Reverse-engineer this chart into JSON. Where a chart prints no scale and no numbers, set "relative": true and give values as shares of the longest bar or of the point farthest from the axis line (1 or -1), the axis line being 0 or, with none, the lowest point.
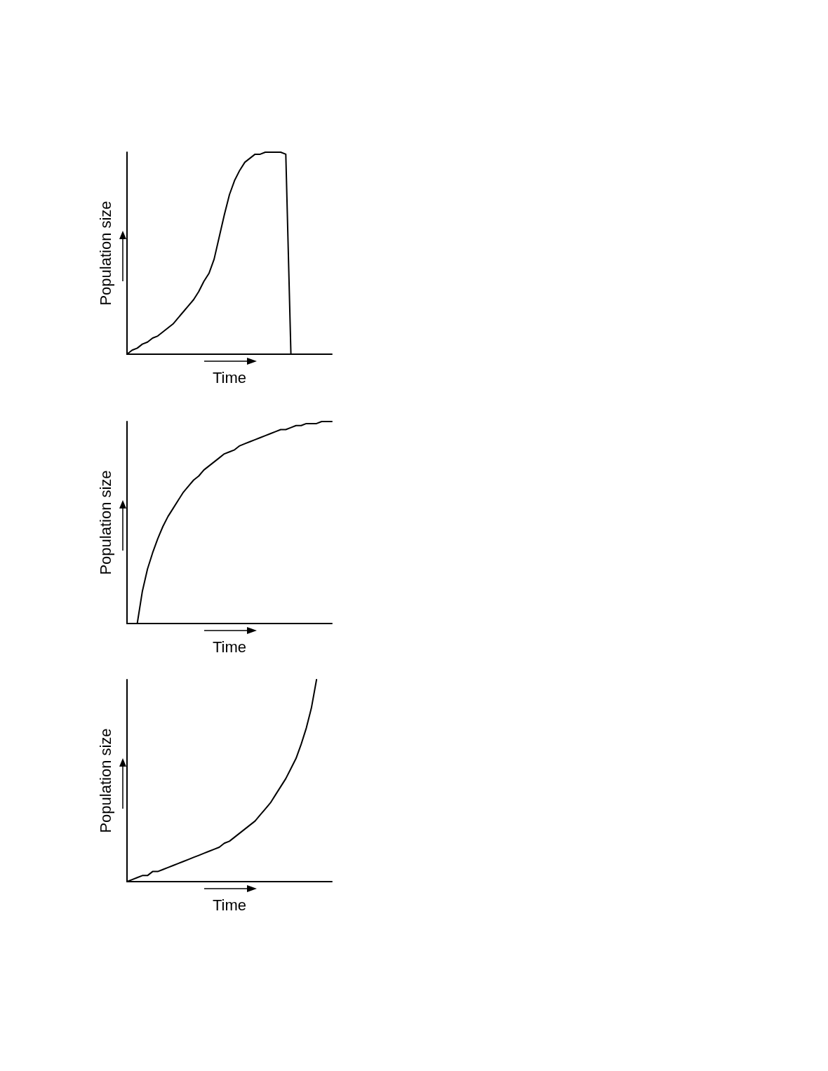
{
  "chart_data": [
    {
      "type": "line",
      "relative": true,
      "xlabel": "Time",
      "ylabel": "Population size",
      "color": "#000000",
      "line_style": "solid",
      "categories": [
        null,
        null,
        null,
        null,
        null,
        null,
        null,
        null,
        null,
        null,
        null,
        null,
        null,
        null,
        null,
        null,
        null,
        null,
        null,
        null,
        null,
        null,
        null,
        null,
        null,
        null,
        null,
        null,
        null,
        null,
        null,
        null,
        null,
        null,
        null,
        null,
        null,
        null,
        null,
        null,
        null
      ],
      "values": [
        0,
        0.02,
        0.03,
        0.05,
        0.06,
        0.08,
        0.09,
        0.11,
        0.13,
        0.15,
        0.18,
        0.21,
        0.24,
        0.27,
        0.31,
        0.36,
        0.4,
        0.47,
        0.58,
        0.69,
        0.79,
        0.86,
        0.91,
        0.95,
        0.97,
        0.99,
        0.99,
        1,
        1,
        1,
        1,
        0.99,
        0,
        null,
        null,
        null,
        null,
        null,
        null,
        null,
        null
      ]
    },
    {
      "type": "line",
      "relative": true,
      "xlabel": "Time",
      "ylabel": "Population size",
      "color": "#000000",
      "line_style": "solid",
      "categories": [
        null,
        null,
        null,
        null,
        null,
        null,
        null,
        null,
        null,
        null,
        null,
        null,
        null,
        null,
        null,
        null,
        null,
        null,
        null,
        null,
        null,
        null,
        null,
        null,
        null,
        null,
        null,
        null,
        null,
        null,
        null,
        null,
        null,
        null,
        null,
        null,
        null,
        null,
        null,
        null,
        null
      ],
      "values": [
        null,
        null,
        0,
        0.16,
        0.27,
        0.35,
        0.42,
        0.48,
        0.53,
        0.57,
        0.61,
        0.65,
        0.68,
        0.71,
        0.73,
        0.76,
        0.78,
        0.8,
        0.82,
        0.84,
        0.85,
        0.86,
        0.88,
        0.89,
        0.9,
        0.91,
        0.92,
        0.93,
        0.94,
        0.95,
        0.96,
        0.96,
        0.97,
        0.98,
        0.98,
        0.99,
        0.99,
        0.99,
        1,
        1,
        1
      ]
    },
    {
      "type": "line",
      "relative": true,
      "xlabel": "Time",
      "ylabel": "Population size",
      "color": "#000000",
      "line_style": "solid",
      "categories": [
        null,
        null,
        null,
        null,
        null,
        null,
        null,
        null,
        null,
        null,
        null,
        null,
        null,
        null,
        null,
        null,
        null,
        null,
        null,
        null,
        null,
        null,
        null,
        null,
        null,
        null,
        null,
        null,
        null,
        null,
        null,
        null,
        null,
        null,
        null,
        null,
        null,
        null,
        null,
        null,
        null
      ],
      "values": [
        0,
        0.01,
        0.02,
        0.03,
        0.03,
        0.05,
        0.05,
        0.06,
        0.07,
        0.08,
        0.09,
        0.1,
        0.11,
        0.12,
        0.13,
        0.14,
        0.15,
        0.16,
        0.17,
        0.19,
        0.2,
        0.22,
        0.24,
        0.26,
        0.28,
        0.3,
        0.33,
        0.36,
        0.39,
        0.43,
        0.47,
        0.51,
        0.56,
        0.61,
        0.68,
        0.76,
        0.86,
        1,
        null,
        null,
        null
      ]
    }
  ]
}
